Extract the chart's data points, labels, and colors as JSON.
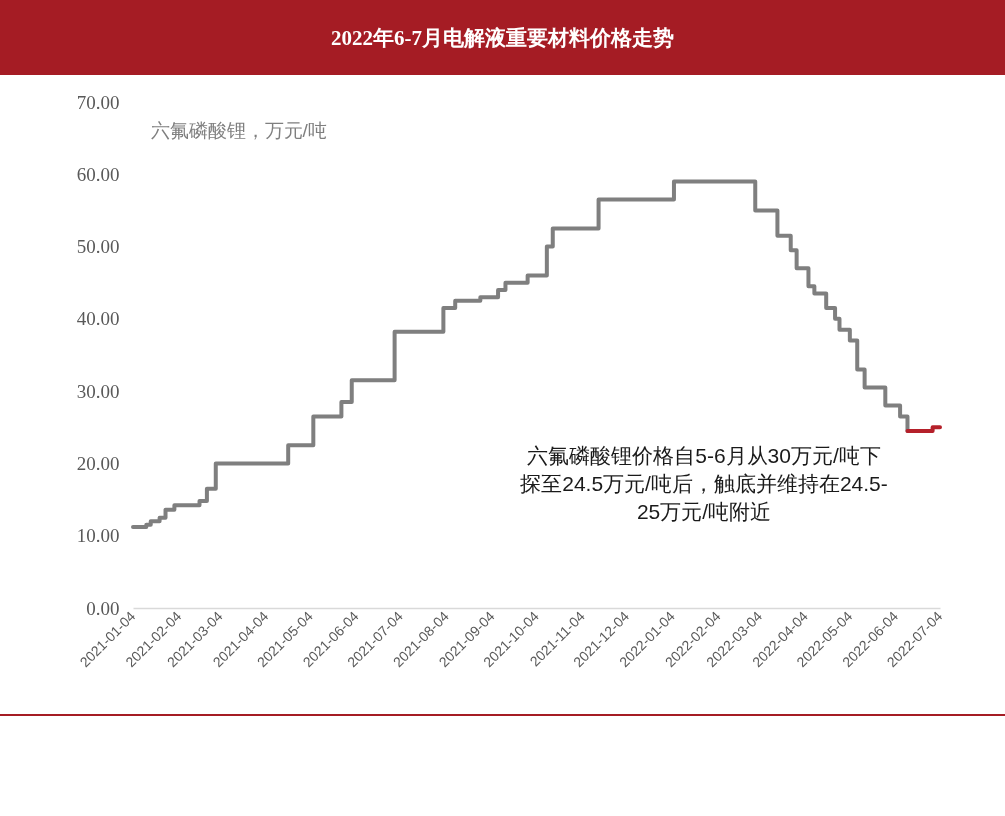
{
  "chart_data": {
    "type": "step",
    "title": "2022年6-7月电解液重要材料价格走势",
    "ylabel": "六氟磷酸锂，万元/吨",
    "annotations": [
      "六氟磷酸锂价格自5-6月从30万元/吨下探至24.5万元/吨后，触底并维持在24.5-25万元/吨附近"
    ],
    "series": [
      {
        "color": "#7f7f7f",
        "x": [
          "2021-01-04",
          "2021-01-13",
          "2021-01-16",
          "2021-01-22",
          "2021-01-26",
          "2021-02-01",
          "2021-02-18",
          "2021-02-23",
          "2021-03-01",
          "2021-04-19",
          "2021-05-06",
          "2021-05-25",
          "2021-06-01",
          "2021-06-30",
          "2021-08-02",
          "2021-08-10",
          "2021-08-27",
          "2021-09-08",
          "2021-09-13",
          "2021-09-28",
          "2021-10-11",
          "2021-10-15",
          "2021-11-15",
          "2022-01-05",
          "2022-03-01",
          "2022-03-16",
          "2022-03-25",
          "2022-03-29",
          "2022-04-06",
          "2022-04-10",
          "2022-04-18",
          "2022-04-24",
          "2022-04-27",
          "2022-05-04",
          "2022-05-09",
          "2022-05-14",
          "2022-05-28",
          "2022-06-07",
          "2022-06-12"
        ],
        "values": [
          11.2,
          11.5,
          12.0,
          12.5,
          13.6,
          14.2,
          14.8,
          16.5,
          20.0,
          22.5,
          26.5,
          28.5,
          31.5,
          38.2,
          41.5,
          42.5,
          43.0,
          44.0,
          45.0,
          46.0,
          50.0,
          52.5,
          56.5,
          59.0,
          55.0,
          51.5,
          49.5,
          47.0,
          44.5,
          43.5,
          41.5,
          40.0,
          38.5,
          37.0,
          33.0,
          30.5,
          28.0,
          26.5,
          24.5
        ]
      },
      {
        "color": "#b5202a",
        "x": [
          "2022-06-12",
          "2022-06-29",
          "2022-07-04"
        ],
        "values": [
          24.5,
          25.0,
          25.0
        ]
      }
    ],
    "xlim": [
      "2021-01-04",
      "2022-07-04"
    ],
    "xticks": [
      "2021-01-04",
      "2021-02-04",
      "2021-03-04",
      "2021-04-04",
      "2021-05-04",
      "2021-06-04",
      "2021-07-04",
      "2021-08-04",
      "2021-09-04",
      "2021-10-04",
      "2021-11-04",
      "2021-12-04",
      "2022-01-04",
      "2022-02-04",
      "2022-03-04",
      "2022-04-04",
      "2022-05-04",
      "2022-06-04",
      "2022-07-04"
    ],
    "ylim": [
      0,
      70
    ],
    "yticks": [
      {
        "value": 0,
        "label": "0.00"
      },
      {
        "value": 10,
        "label": "10.00"
      },
      {
        "value": 20,
        "label": "20.00"
      },
      {
        "value": 30,
        "label": "30.00"
      },
      {
        "value": 40,
        "label": "40.00"
      },
      {
        "value": 50,
        "label": "50.00"
      },
      {
        "value": 60,
        "label": "60.00"
      },
      {
        "value": 70,
        "label": "70.00"
      }
    ],
    "grid": false
  }
}
